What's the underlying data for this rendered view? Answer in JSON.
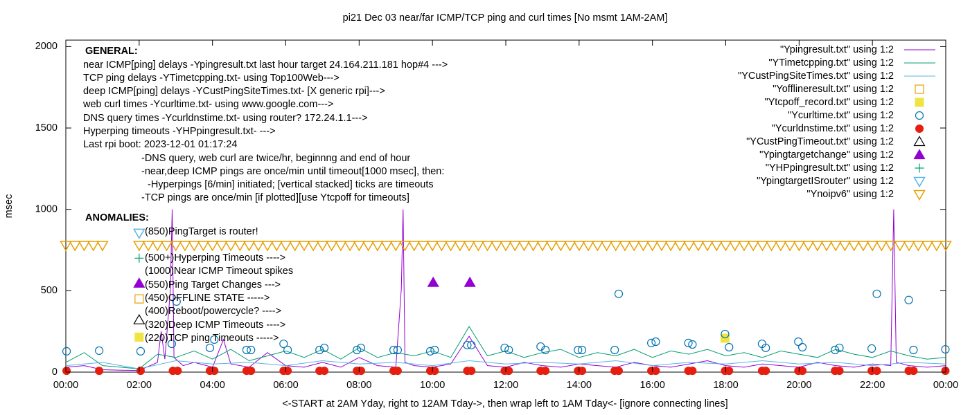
{
  "chart_data": {
    "type": "line",
    "title": "pi21 Dec 03  near/far ICMP/TCP ping and curl times [No msmt 1AM-2AM]",
    "xlabel": "<-START at 2AM Yday, right to 12AM Tday->, then wrap left to 1AM Tday<- [ignore connecting lines]",
    "ylabel": "msec",
    "xlim": [
      0,
      24
    ],
    "ylim": [
      0,
      2040
    ],
    "xticks": [
      {
        "value": 0,
        "label": "00:00"
      },
      {
        "value": 2,
        "label": "02:00"
      },
      {
        "value": 4,
        "label": "04:00"
      },
      {
        "value": 6,
        "label": "06:00"
      },
      {
        "value": 8,
        "label": "08:00"
      },
      {
        "value": 10,
        "label": "10:00"
      },
      {
        "value": 12,
        "label": "12:00"
      },
      {
        "value": 14,
        "label": "14:00"
      },
      {
        "value": 16,
        "label": "16:00"
      },
      {
        "value": 18,
        "label": "18:00"
      },
      {
        "value": 20,
        "label": "20:00"
      },
      {
        "value": 22,
        "label": "22:00"
      },
      {
        "value": 24,
        "label": "00:00"
      }
    ],
    "yticks": [
      0,
      500,
      1000,
      1500,
      2000
    ],
    "grid": false,
    "legend": "top-right",
    "annotations": [
      "GENERAL:",
      "near ICMP[ping] delays -Ypingresult.txt last hour target 24.164.211.181 hop#4 --->",
      "TCP ping delays -YTimetcpping.txt- using Top100Web--->",
      "deep ICMP[ping] delays -YCustPingSiteTimes.txt- [X generic rpi]--->",
      "web curl times -Ycurltime.txt- using www.google.com--->",
      "DNS query times -Ycurldnstime.txt- using router? 172.24.1.1--->",
      "Hyperping timeouts -YHPpingresult.txt- --->",
      "Last rpi boot: 2023-12-01 01:17:24",
      "-DNS query, web curl are twice/hr, beginnng and end of hour",
      "-near,deep ICMP pings are once/min until timeout[1000 msec], then:",
      "-Hyperpings [6/min] initiated; [vertical stacked] ticks are timeouts",
      "-TCP pings are once/min [if plotted][use Ytcpoff for timeouts]",
      "ANOMALIES:",
      "(850)PingTarget is router!",
      "(500+)Hyperping Timeouts ---->",
      "(1000)Near ICMP Timeout spikes",
      "(550)Ping Target Changes --->",
      "(450)OFFLINE STATE ----->",
      "(400)Reboot/powercycle? ---->",
      "(320)Deep ICMP Timeouts ---->",
      "(220)TCP ping Timeouts ----->"
    ],
    "series": [
      {
        "name": "\"Ypingresult.txt\" using 1:2",
        "color": "#9400d3",
        "marker": "line",
        "x": [
          0,
          0.5,
          1,
          1.5,
          2,
          2.5,
          2.6,
          2.7,
          2.85,
          2.9,
          2.95,
          3.2,
          3.5,
          4,
          4.3,
          4.5,
          5,
          5.5,
          6,
          6.5,
          7,
          7.5,
          8,
          8.5,
          9,
          9.15,
          9.2,
          9.25,
          9.5,
          10,
          10.5,
          11,
          11.5,
          12,
          12.5,
          13,
          13.5,
          14,
          14.5,
          15,
          15.5,
          16,
          16.5,
          17,
          17.5,
          18,
          18.5,
          19,
          19.5,
          20,
          20.5,
          21,
          21.5,
          22,
          22.5,
          22.58,
          22.65,
          23,
          23.5,
          24
        ],
        "values": [
          30,
          40,
          15,
          12,
          10,
          60,
          250,
          80,
          500,
          1000,
          90,
          40,
          60,
          30,
          200,
          50,
          30,
          120,
          40,
          30,
          60,
          30,
          90,
          40,
          30,
          510,
          1000,
          60,
          40,
          30,
          50,
          220,
          40,
          30,
          60,
          40,
          30,
          50,
          40,
          30,
          60,
          40,
          30,
          50,
          70,
          40,
          30,
          50,
          40,
          30,
          60,
          40,
          30,
          50,
          40,
          1000,
          60,
          40,
          30,
          40
        ]
      },
      {
        "name": "\"YTimetcpping.txt\" using 1:2",
        "color": "#009e73",
        "marker": "line",
        "x": [
          0,
          0.5,
          1,
          1.5,
          2,
          2.5,
          3,
          3.5,
          4,
          4.5,
          5,
          5.5,
          6,
          6.5,
          7,
          7.5,
          8,
          8.5,
          9,
          9.5,
          10,
          10.5,
          11,
          11.5,
          12,
          12.5,
          13,
          13.5,
          14,
          14.5,
          15,
          15.5,
          16,
          16.5,
          17,
          17.5,
          18,
          18.5,
          19,
          19.5,
          20,
          20.5,
          21,
          21.5,
          22,
          22.5,
          23,
          23.5,
          24
        ],
        "values": [
          60,
          120,
          40,
          30,
          20,
          110,
          90,
          130,
          80,
          140,
          70,
          100,
          130,
          90,
          140,
          80,
          150,
          90,
          120,
          100,
          130,
          90,
          280,
          100,
          130,
          90,
          120,
          140,
          90,
          120,
          100,
          140,
          90,
          130,
          110,
          140,
          100,
          120,
          90,
          130,
          110,
          90,
          140,
          110,
          90,
          130,
          100,
          80,
          90
        ]
      },
      {
        "name": "\"YCustPingSiteTimes.txt\" using 1:2",
        "color": "#56b4e9",
        "marker": "line",
        "x": [
          0,
          1,
          2,
          3,
          4,
          5,
          6,
          7,
          8,
          9,
          10,
          11,
          12,
          13,
          14,
          15,
          16,
          17,
          18,
          19,
          20,
          21,
          22,
          23,
          24
        ],
        "values": [
          40,
          60,
          20,
          70,
          50,
          60,
          40,
          70,
          50,
          60,
          40,
          70,
          50,
          60,
          50,
          70,
          40,
          60,
          50,
          70,
          50,
          60,
          40,
          60,
          50
        ]
      },
      {
        "name": "\"Yofflineresult.txt\" using 1:2",
        "color": "#e69f00",
        "marker": "square-open",
        "x": [
          2
        ],
        "values": [
          450
        ]
      },
      {
        "name": "\"Ytcpoff_record.txt\" using 1:2",
        "color": "#f0e442",
        "marker": "square",
        "x": [
          2,
          17.98
        ],
        "values": [
          215,
          208
        ]
      },
      {
        "name": "\"Ycurltime.txt\" using 1:2",
        "color": "#0072b2",
        "marker": "circle-open",
        "x": [
          0.02,
          0.91,
          2.04,
          2.89,
          3.02,
          3.93,
          4.05,
          4.93,
          5.05,
          5.94,
          6.05,
          6.92,
          7.05,
          7.94,
          8.05,
          8.94,
          9.05,
          9.94,
          10.06,
          10.95,
          11.06,
          11.97,
          12.08,
          12.95,
          13.08,
          13.97,
          14.08,
          14.97,
          15.08,
          15.97,
          16.09,
          16.98,
          17.09,
          17.98,
          18.09,
          18.99,
          19.09,
          19.98,
          20.09,
          20.98,
          21.1,
          21.98,
          22.12,
          22.99,
          23.12,
          23.99
        ],
        "values": [
          128,
          132,
          128,
          174,
          434,
          149,
          200,
          136,
          136,
          174,
          136,
          136,
          149,
          136,
          149,
          136,
          136,
          128,
          136,
          166,
          166,
          149,
          136,
          157,
          136,
          136,
          136,
          136,
          481,
          179,
          187,
          179,
          170,
          234,
          153,
          174,
          149,
          187,
          153,
          136,
          149,
          145,
          481,
          443,
          136,
          140
        ]
      },
      {
        "name": "\"Ycurldnstime.txt\" using 1:2",
        "color": "#e51e10",
        "marker": "circle",
        "x": [
          0.02,
          0.91,
          2.04,
          2.92,
          3.05,
          3.93,
          4.05,
          4.93,
          5.05,
          5.94,
          6.05,
          6.92,
          7.05,
          7.94,
          8.05,
          8.94,
          9.05,
          9.94,
          10.06,
          10.95,
          11.06,
          11.97,
          12.08,
          12.95,
          13.08,
          13.97,
          14.08,
          14.97,
          15.08,
          15.97,
          16.09,
          16.98,
          17.09,
          17.98,
          18.09,
          18.99,
          19.09,
          19.98,
          20.09,
          20.98,
          21.1,
          21.98,
          22.12,
          22.99,
          23.12,
          23.99
        ],
        "values": [
          8,
          8,
          8,
          8,
          8,
          8,
          8,
          8,
          8,
          8,
          8,
          8,
          8,
          8,
          8,
          8,
          8,
          8,
          8,
          8,
          8,
          8,
          8,
          8,
          8,
          8,
          8,
          8,
          8,
          8,
          8,
          8,
          8,
          8,
          8,
          8,
          8,
          8,
          8,
          8,
          8,
          8,
          8,
          8,
          8,
          8
        ]
      },
      {
        "name": "\"YCustPingTimeout.txt\" using 1:2",
        "color": "#000000",
        "marker": "triangle-open",
        "x": [
          2
        ],
        "values": [
          320
        ]
      },
      {
        "name": "\"Ypingtargetchange\" using 1:2",
        "color": "#9400d3",
        "marker": "triangle",
        "x": [
          2,
          10.02,
          11.02
        ],
        "values": [
          545,
          550,
          550
        ]
      },
      {
        "name": "\"YHPpingresult.txt\" using 1:2",
        "color": "#009e73",
        "marker": "plus",
        "x": [
          2
        ],
        "values": [
          700
        ]
      },
      {
        "name": "\"YpingtargetISrouter\" using 1:2",
        "color": "#56b4e9",
        "marker": "triangle-down-open",
        "x": [
          2
        ],
        "values": [
          855
        ]
      },
      {
        "name": "\"Ynoipv6\" using 1:2",
        "color": "#e69f00",
        "marker": "triangle-down-open",
        "x": [
          0,
          0.25,
          0.5,
          0.75,
          1,
          2,
          2.25,
          2.5,
          2.75,
          3,
          3.25,
          3.5,
          3.75,
          4,
          4.25,
          4.5,
          4.75,
          5,
          5.25,
          5.5,
          5.75,
          6,
          6.25,
          6.5,
          6.75,
          7,
          7.25,
          7.5,
          7.75,
          8,
          8.25,
          8.5,
          8.75,
          9,
          9.25,
          9.5,
          9.75,
          10,
          10.25,
          10.5,
          10.75,
          11,
          11.25,
          11.5,
          11.75,
          12,
          12.25,
          12.5,
          12.75,
          13,
          13.25,
          13.5,
          13.75,
          14,
          14.25,
          14.5,
          14.75,
          15,
          15.25,
          15.5,
          15.75,
          16,
          16.25,
          16.5,
          16.75,
          17,
          17.25,
          17.5,
          17.75,
          18,
          18.25,
          18.5,
          18.75,
          19,
          19.25,
          19.5,
          19.75,
          20,
          20.25,
          20.5,
          20.75,
          21,
          21.25,
          21.5,
          21.75,
          22,
          22.25,
          22.5,
          22.75,
          23,
          23.25,
          23.5,
          23.75,
          24
        ],
        "values": [
          780,
          780,
          780,
          780,
          780,
          780,
          780,
          780,
          780,
          780,
          780,
          780,
          780,
          780,
          780,
          780,
          780,
          780,
          780,
          780,
          780,
          780,
          780,
          780,
          780,
          780,
          780,
          780,
          780,
          780,
          780,
          780,
          780,
          780,
          780,
          780,
          780,
          780,
          780,
          780,
          780,
          780,
          780,
          780,
          780,
          780,
          780,
          780,
          780,
          780,
          780,
          780,
          780,
          780,
          780,
          780,
          780,
          780,
          780,
          780,
          780,
          780,
          780,
          780,
          780,
          780,
          780,
          780,
          780,
          780,
          780,
          780,
          780,
          780,
          780,
          780,
          780,
          780,
          780,
          780,
          780,
          780,
          780,
          780,
          780,
          780,
          780,
          780,
          780,
          780,
          780,
          780,
          780,
          780
        ]
      }
    ]
  }
}
